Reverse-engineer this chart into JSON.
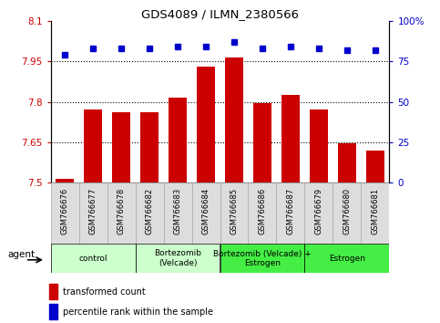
{
  "title": "GDS4089 / ILMN_2380566",
  "samples": [
    "GSM766676",
    "GSM766677",
    "GSM766678",
    "GSM766682",
    "GSM766683",
    "GSM766684",
    "GSM766685",
    "GSM766686",
    "GSM766687",
    "GSM766679",
    "GSM766680",
    "GSM766681"
  ],
  "red_values": [
    7.515,
    7.77,
    7.76,
    7.76,
    7.815,
    7.93,
    7.965,
    7.795,
    7.825,
    7.77,
    7.645,
    7.62
  ],
  "blue_values": [
    79,
    83,
    83,
    83,
    84,
    84,
    87,
    83,
    84,
    83,
    82,
    82
  ],
  "ylim_left": [
    7.5,
    8.1
  ],
  "ylim_right": [
    0,
    100
  ],
  "yticks_left": [
    7.5,
    7.65,
    7.8,
    7.95,
    8.1
  ],
  "yticks_right": [
    0,
    25,
    50,
    75,
    100
  ],
  "ytick_labels_left": [
    "7.5",
    "7.65",
    "7.8",
    "7.95",
    "8.1"
  ],
  "ytick_labels_right": [
    "0",
    "25",
    "50",
    "75",
    "100%"
  ],
  "hlines": [
    7.65,
    7.8,
    7.95
  ],
  "bar_color": "#cc0000",
  "dot_color": "#0000cc",
  "agent_groups": [
    {
      "label": "control",
      "start": 0,
      "end": 3,
      "color": "#ccffcc"
    },
    {
      "label": "Bortezomib\n(Velcade)",
      "start": 3,
      "end": 6,
      "color": "#ccffcc"
    },
    {
      "label": "Bortezomib (Velcade) +\nEstrogen",
      "start": 6,
      "end": 9,
      "color": "#44ee44"
    },
    {
      "label": "Estrogen",
      "start": 9,
      "end": 12,
      "color": "#44ee44"
    }
  ],
  "legend_red": "transformed count",
  "legend_blue": "percentile rank within the sample",
  "agent_label": "agent",
  "bar_color_label": "#cc0000",
  "dot_color_label": "#0000cc",
  "label_cell_color": "#dddddd",
  "label_cell_edge": "#aaaaaa"
}
